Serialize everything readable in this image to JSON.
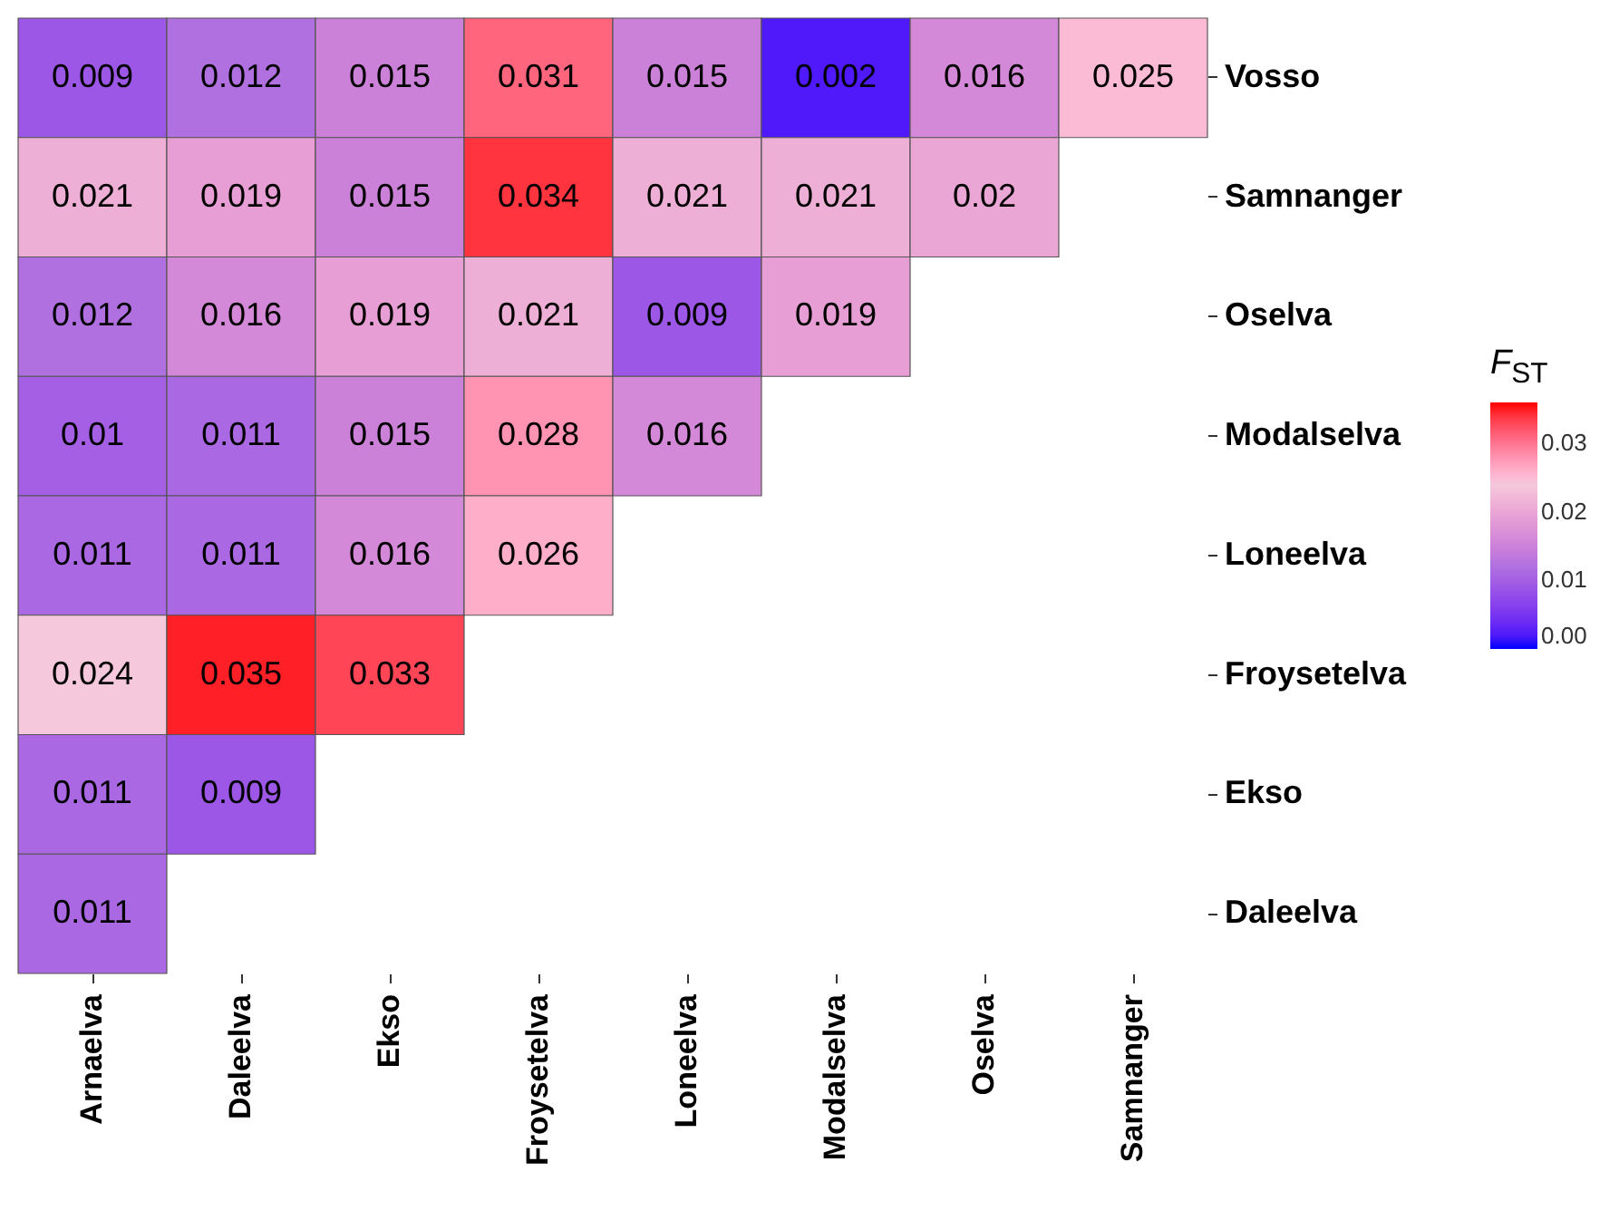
{
  "chart_data": {
    "type": "heatmap",
    "categories": [
      "Arnaelva",
      "Daleelva",
      "Ekso",
      "Froysetelva",
      "Loneelva",
      "Modalselva",
      "Oselva",
      "Samnanger"
    ],
    "y_categories": [
      "Vosso",
      "Samnanger",
      "Oselva",
      "Modalselva",
      "Loneelva",
      "Froysetelva",
      "Ekso",
      "Daleelva"
    ],
    "cells": [
      [
        0.009,
        0.012,
        0.015,
        0.031,
        0.015,
        0.002,
        0.016,
        0.025
      ],
      [
        0.021,
        0.019,
        0.015,
        0.034,
        0.021,
        0.021,
        0.02,
        null
      ],
      [
        0.012,
        0.016,
        0.019,
        0.021,
        0.009,
        0.019,
        null,
        null
      ],
      [
        0.01,
        0.011,
        0.015,
        0.028,
        0.016,
        null,
        null,
        null
      ],
      [
        0.011,
        0.011,
        0.016,
        0.026,
        null,
        null,
        null,
        null
      ],
      [
        0.024,
        0.035,
        0.033,
        null,
        null,
        null,
        null,
        null
      ],
      [
        0.011,
        0.009,
        null,
        null,
        null,
        null,
        null,
        null
      ],
      [
        0.011,
        null,
        null,
        null,
        null,
        null,
        null,
        null
      ]
    ],
    "data_labels": true,
    "clabel": "F$_{ST}$",
    "clim": [
      0,
      0.036
    ],
    "cticks": [
      {
        "value": 0,
        "label": "0.00"
      },
      {
        "value": 0.01,
        "label": "0.01"
      },
      {
        "value": 0.02,
        "label": "0.02"
      },
      {
        "value": 0.03,
        "label": "0.03"
      }
    ]
  }
}
